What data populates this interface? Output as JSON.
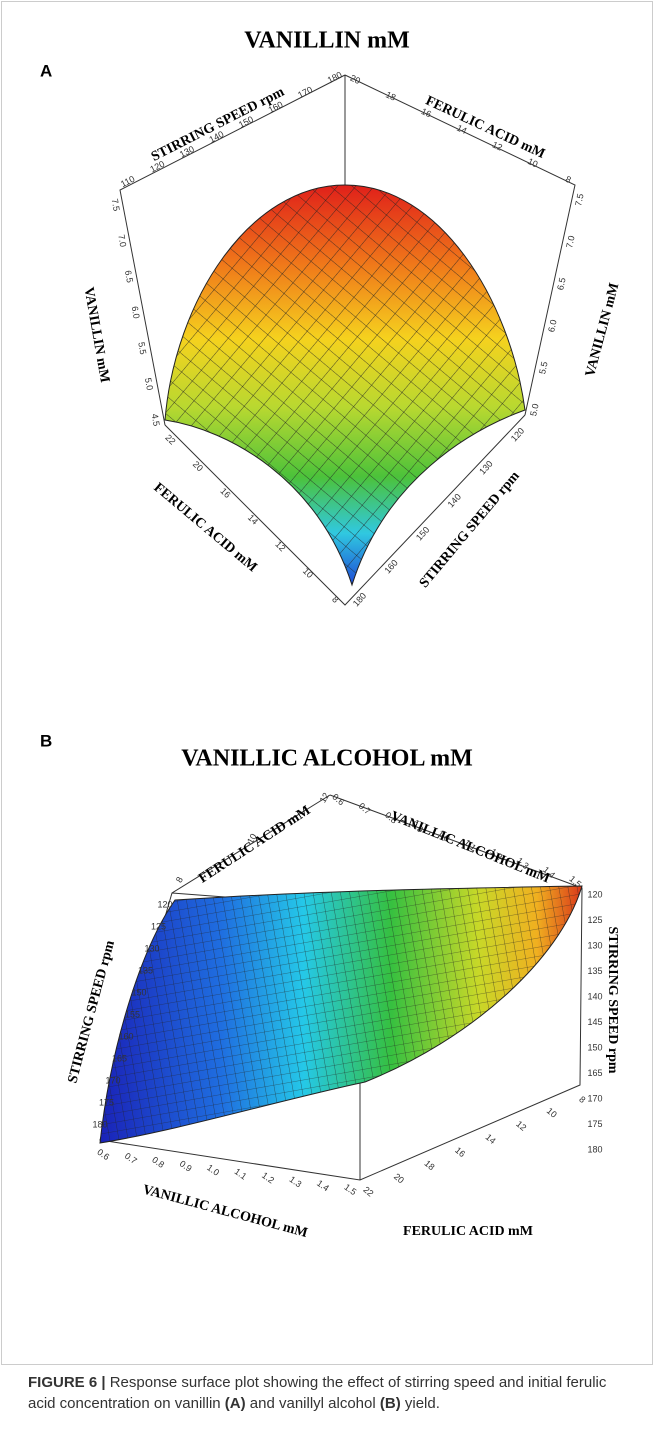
{
  "figure": {
    "panels": [
      {
        "label": "A",
        "title": "VANILLIN  mM",
        "axes": [
          {
            "label": "STIRRING SPEED rpm",
            "ticks": [
              "110",
              "120",
              "130",
              "140",
              "150",
              "160",
              "170",
              "180"
            ]
          },
          {
            "label": "FERULIC ACID mM",
            "ticks": [
              "20",
              "18",
              "16",
              "14",
              "12",
              "10",
              "8"
            ]
          },
          {
            "label": "VANILLIN mM",
            "ticks": [
              "7.5",
              "7.0",
              "6.5",
              "6.0",
              "5.5",
              "5.0",
              "4.5"
            ]
          },
          {
            "label": "VANILLIN mM",
            "ticks": [
              "7.5",
              "7.0",
              "6.5",
              "6.0",
              "5.5",
              "5.0"
            ]
          },
          {
            "label": "FERULIC ACID mM",
            "ticks": [
              "22",
              "20",
              "16",
              "14",
              "12",
              "10",
              "8"
            ]
          },
          {
            "label": "STIRRING SPEED rpm",
            "ticks": [
              "180",
              "160",
              "150",
              "140",
              "130",
              "120"
            ]
          }
        ]
      },
      {
        "label": "B",
        "title": "VANILLIC  ALCOHOL  mM",
        "axes": [
          {
            "label": "FERULIC ACID mM",
            "ticks": [
              "8",
              "10",
              "12"
            ]
          },
          {
            "label": "VANILLIC ALCOHOL mM",
            "ticks": [
              "0.6",
              "0.7",
              "0.8",
              "0.9",
              "1.0",
              "1.1",
              "1.2",
              "1.3",
              "1.4",
              "1.5"
            ]
          },
          {
            "label": "STIRRING SPEED rpm",
            "ticks": [
              "120",
              "125",
              "130",
              "135",
              "150",
              "155",
              "160",
              "165",
              "170",
              "175",
              "180"
            ]
          },
          {
            "label": "STIRRING SPEED rpm",
            "ticks": [
              "120",
              "125",
              "130",
              "135",
              "140",
              "145",
              "150",
              "165",
              "170",
              "175",
              "180"
            ]
          },
          {
            "label": "VANILLIC ALCOHOL mM",
            "ticks": [
              "0.6",
              "0.7",
              "0.8",
              "0.9",
              "1.0",
              "1.1",
              "1.2",
              "1.3",
              "1.4",
              "1.5"
            ]
          },
          {
            "label": "FERULIC ACID mM",
            "ticks": [
              "22",
              "20",
              "18",
              "16",
              "14",
              "12",
              "10",
              "8"
            ]
          }
        ]
      }
    ],
    "caption": {
      "label": "FIGURE 6 |",
      "parts": [
        "Response surface plot showing the effect of stirring speed and initial ferulic acid concentration on vanillin ",
        "(A)",
        " and vanillyl alcohol ",
        "(B)",
        " yield."
      ]
    }
  }
}
